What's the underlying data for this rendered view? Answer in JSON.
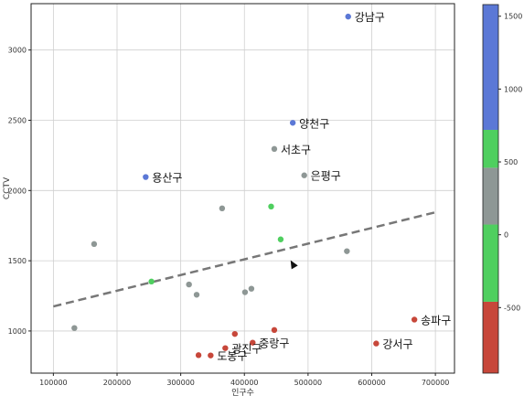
{
  "chart_data": {
    "type": "scatter",
    "xlabel": "인구수",
    "ylabel": "CCTV",
    "xlim": [
      65000,
      730000
    ],
    "ylim": [
      700,
      3330
    ],
    "xticks": [
      100000,
      200000,
      300000,
      400000,
      500000,
      600000,
      700000
    ],
    "yticks": [
      1000,
      1500,
      2000,
      2500,
      3000
    ],
    "grid": true,
    "trend_line": {
      "x": [
        100000,
        700000
      ],
      "y": [
        1175,
        1845
      ],
      "color": "#777777",
      "style": "dashed"
    },
    "points": [
      {
        "x": 563000,
        "y": 3238,
        "value": 1200,
        "label": "강남구"
      },
      {
        "x": 476000,
        "y": 2482,
        "value": 1100,
        "label": "양천구"
      },
      {
        "x": 447000,
        "y": 2296,
        "value": 400,
        "label": "서초구"
      },
      {
        "x": 494000,
        "y": 2108,
        "value": 450,
        "label": "은평구"
      },
      {
        "x": 245000,
        "y": 2096,
        "value": 1050,
        "label": "용산구"
      },
      {
        "x": 365000,
        "y": 1873,
        "value": 400,
        "label": ""
      },
      {
        "x": 442000,
        "y": 1886,
        "value": 0,
        "label": ""
      },
      {
        "x": 164000,
        "y": 1619,
        "value": 400,
        "label": ""
      },
      {
        "x": 457000,
        "y": 1652,
        "value": 0,
        "label": ""
      },
      {
        "x": 561000,
        "y": 1568,
        "value": 300,
        "label": ""
      },
      {
        "x": 254000,
        "y": 1352,
        "value": 0,
        "label": ""
      },
      {
        "x": 313000,
        "y": 1331,
        "value": 400,
        "label": ""
      },
      {
        "x": 325000,
        "y": 1258,
        "value": 400,
        "label": ""
      },
      {
        "x": 401000,
        "y": 1276,
        "value": 400,
        "label": ""
      },
      {
        "x": 411000,
        "y": 1301,
        "value": 400,
        "label": ""
      },
      {
        "x": 133000,
        "y": 1021,
        "value": 400,
        "label": ""
      },
      {
        "x": 667000,
        "y": 1081,
        "value": -600,
        "label": "송파구"
      },
      {
        "x": 607000,
        "y": 911,
        "value": -600,
        "label": "강서구"
      },
      {
        "x": 413000,
        "y": 917,
        "value": -600,
        "label": "중랑구"
      },
      {
        "x": 447000,
        "y": 1007,
        "value": -600,
        "label": ""
      },
      {
        "x": 385000,
        "y": 979,
        "value": -600,
        "label": ""
      },
      {
        "x": 370000,
        "y": 878,
        "value": -600,
        "label": "광진구"
      },
      {
        "x": 347000,
        "y": 826,
        "value": -600,
        "label": "도봉구"
      },
      {
        "x": 328000,
        "y": 828,
        "value": -600,
        "label": ""
      }
    ],
    "colorbar": {
      "range": [
        -950,
        1580
      ],
      "ticks": [
        -500,
        0,
        500,
        1000,
        1500
      ],
      "bands": [
        {
          "from": -950,
          "to": -460,
          "color": "#c7473a"
        },
        {
          "from": -460,
          "to": 70,
          "color": "#4fcf5f"
        },
        {
          "from": 70,
          "to": 460,
          "color": "#8e9795"
        },
        {
          "from": 460,
          "to": 720,
          "color": "#4fcf5f"
        },
        {
          "from": 720,
          "to": 1580,
          "color": "#5b78d6"
        }
      ]
    }
  },
  "colors": {
    "negative": "#c7473a",
    "neutral": "#8e9795",
    "positive": "#4fcf5f",
    "high": "#5b78d6"
  }
}
